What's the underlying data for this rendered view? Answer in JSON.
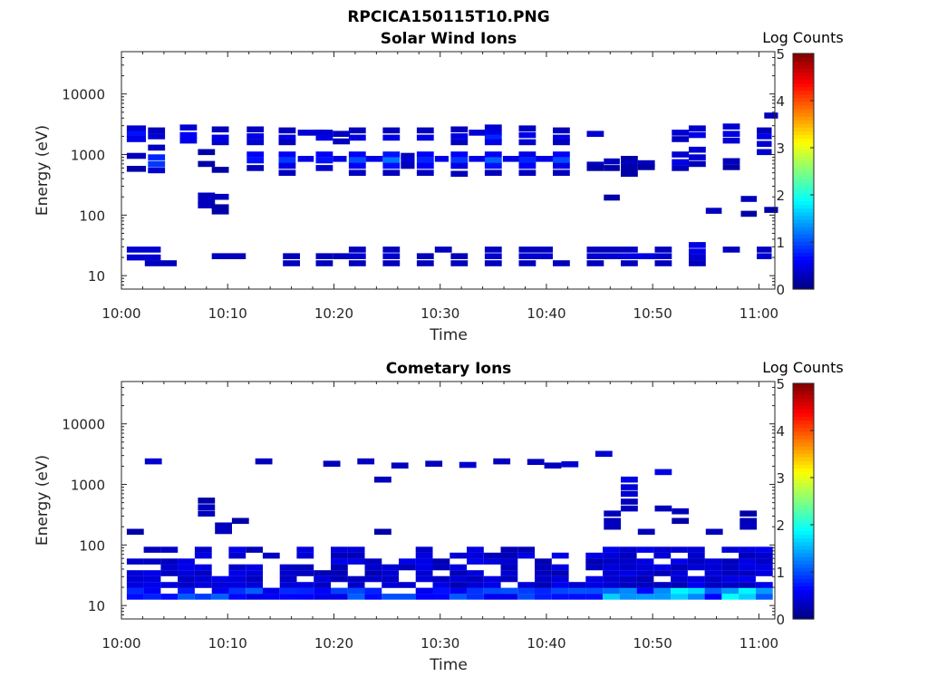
{
  "figure": {
    "suptitle": "RPCICA150115T10.PNG"
  },
  "colorbar": {
    "title": "Log Counts",
    "ticks": [
      "0",
      "1",
      "2",
      "3",
      "4",
      "5"
    ],
    "range": [
      0,
      5
    ],
    "colormap": "jet"
  },
  "chart_data": [
    {
      "type": "heatmap",
      "title": "Solar Wind Ions",
      "xlabel": "Time",
      "ylabel": "Energy (eV)",
      "x_ticks": [
        "10:00",
        "10:10",
        "10:20",
        "10:30",
        "10:40",
        "10:50",
        "11:00"
      ],
      "y_ticks": [
        "10",
        "100",
        "1000",
        "10000"
      ],
      "yscale": "log",
      "xlim_minutes": [
        0,
        61.5
      ],
      "ylim_ev": [
        6,
        50000
      ],
      "cells": [
        [
          0.5,
          2700,
          1.8,
          0.4
        ],
        [
          0.5,
          2200,
          1.8,
          0.7
        ],
        [
          0.5,
          1800,
          1.8,
          0.5
        ],
        [
          2.5,
          2500,
          1.6,
          0.3
        ],
        [
          2.5,
          2000,
          1.6,
          0.4
        ],
        [
          2.5,
          1300,
          1.6,
          0.3
        ],
        [
          2.5,
          900,
          1.6,
          0.8
        ],
        [
          2.5,
          700,
          1.6,
          0.9
        ],
        [
          2.5,
          550,
          1.6,
          0.4
        ],
        [
          0.5,
          950,
          1.8,
          0.3
        ],
        [
          0.5,
          580,
          1.8,
          0.2
        ],
        [
          5.5,
          2800,
          1.6,
          0.4
        ],
        [
          5.5,
          2100,
          1.6,
          0.6
        ],
        [
          5.5,
          1700,
          1.6,
          0.5
        ],
        [
          8.5,
          2600,
          1.6,
          0.3
        ],
        [
          8.5,
          1900,
          1.6,
          0.5
        ],
        [
          8.5,
          1600,
          1.6,
          0.4
        ],
        [
          8.5,
          560,
          1.6,
          0.2
        ],
        [
          7.2,
          1100,
          1.6,
          0.2
        ],
        [
          7.2,
          700,
          1.6,
          0.2
        ],
        [
          11.8,
          2600,
          1.6,
          0.3
        ],
        [
          11.8,
          2000,
          1.6,
          0.5
        ],
        [
          11.8,
          1600,
          1.6,
          0.4
        ],
        [
          11.8,
          1000,
          1.6,
          0.6
        ],
        [
          11.8,
          800,
          1.6,
          0.7
        ],
        [
          11.8,
          600,
          1.6,
          0.3
        ],
        [
          14.8,
          2500,
          1.6,
          0.3
        ],
        [
          14.8,
          1900,
          1.6,
          0.5
        ],
        [
          14.8,
          1600,
          1.6,
          0.3
        ],
        [
          14.8,
          1000,
          1.6,
          0.6
        ],
        [
          14.8,
          800,
          1.6,
          0.9
        ],
        [
          14.8,
          650,
          1.6,
          0.5
        ],
        [
          14.8,
          500,
          1.6,
          0.3
        ],
        [
          16.6,
          2300,
          2.6,
          0.4
        ],
        [
          16.6,
          850,
          1.5,
          0.5
        ],
        [
          18.3,
          2300,
          1.6,
          0.4
        ],
        [
          18.3,
          1900,
          1.6,
          0.5
        ],
        [
          18.3,
          1000,
          1.6,
          0.6
        ],
        [
          18.3,
          800,
          1.6,
          0.7
        ],
        [
          18.3,
          600,
          1.6,
          0.4
        ],
        [
          19.9,
          2200,
          1.6,
          0.3
        ],
        [
          19.9,
          1650,
          1.6,
          0.3
        ],
        [
          19.9,
          850,
          1.3,
          0.5
        ],
        [
          21.4,
          2500,
          1.6,
          0.3
        ],
        [
          21.4,
          1900,
          1.6,
          0.5
        ],
        [
          21.4,
          1000,
          1.6,
          0.6
        ],
        [
          21.4,
          800,
          1.6,
          1.0
        ],
        [
          21.4,
          650,
          1.6,
          0.6
        ],
        [
          21.4,
          500,
          1.6,
          0.3
        ],
        [
          23.0,
          850,
          1.6,
          0.5
        ],
        [
          24.6,
          2500,
          1.6,
          0.3
        ],
        [
          24.6,
          1900,
          1.6,
          0.5
        ],
        [
          24.6,
          1000,
          1.6,
          0.7
        ],
        [
          24.6,
          800,
          1.6,
          1.2
        ],
        [
          24.6,
          650,
          1.6,
          0.7
        ],
        [
          24.6,
          500,
          1.6,
          0.3
        ],
        [
          26.3,
          950,
          1.3,
          0.3
        ],
        [
          26.3,
          800,
          1.3,
          0.4
        ],
        [
          26.3,
          650,
          1.3,
          0.3
        ],
        [
          27.8,
          2500,
          1.6,
          0.3
        ],
        [
          27.8,
          1900,
          1.6,
          0.5
        ],
        [
          27.8,
          1000,
          1.6,
          0.6
        ],
        [
          27.8,
          800,
          1.6,
          0.8
        ],
        [
          27.8,
          650,
          1.6,
          0.6
        ],
        [
          27.8,
          500,
          1.6,
          0.3
        ],
        [
          29.5,
          850,
          1.3,
          0.5
        ],
        [
          31.0,
          2600,
          1.6,
          0.3
        ],
        [
          31.0,
          2000,
          1.6,
          0.5
        ],
        [
          31.0,
          1600,
          1.6,
          0.3
        ],
        [
          31.0,
          1000,
          1.6,
          0.6
        ],
        [
          31.0,
          800,
          1.6,
          0.9
        ],
        [
          31.0,
          650,
          1.6,
          0.5
        ],
        [
          31.0,
          480,
          1.6,
          0.3
        ],
        [
          32.7,
          2300,
          1.6,
          0.4
        ],
        [
          32.7,
          850,
          1.6,
          0.5
        ],
        [
          34.2,
          2800,
          1.6,
          0.4
        ],
        [
          34.2,
          2300,
          1.6,
          0.5
        ],
        [
          34.2,
          1900,
          1.6,
          0.8
        ],
        [
          34.2,
          1600,
          1.6,
          0.5
        ],
        [
          34.2,
          1000,
          1.6,
          0.6
        ],
        [
          34.2,
          800,
          1.6,
          1.1
        ],
        [
          34.2,
          650,
          1.6,
          0.7
        ],
        [
          34.2,
          500,
          1.6,
          0.3
        ],
        [
          35.9,
          850,
          1.6,
          0.5
        ],
        [
          37.4,
          2700,
          1.6,
          0.3
        ],
        [
          37.4,
          2100,
          1.6,
          0.5
        ],
        [
          37.4,
          1600,
          1.6,
          0.4
        ],
        [
          37.4,
          1000,
          1.6,
          0.5
        ],
        [
          37.4,
          800,
          1.6,
          0.8
        ],
        [
          37.4,
          650,
          1.6,
          0.6
        ],
        [
          37.4,
          500,
          1.6,
          0.3
        ],
        [
          39.0,
          850,
          1.6,
          0.5
        ],
        [
          40.6,
          2500,
          1.6,
          0.3
        ],
        [
          40.6,
          1900,
          1.6,
          0.5
        ],
        [
          40.6,
          1600,
          1.6,
          0.3
        ],
        [
          40.6,
          1000,
          1.6,
          0.6
        ],
        [
          40.6,
          800,
          1.6,
          1.0
        ],
        [
          40.6,
          650,
          1.6,
          0.5
        ],
        [
          40.6,
          500,
          1.6,
          0.3
        ],
        [
          43.8,
          2200,
          1.6,
          0.4
        ],
        [
          43.8,
          680,
          1.6,
          0.3
        ],
        [
          43.8,
          600,
          1.6,
          0.2
        ],
        [
          45.4,
          770,
          1.5,
          0.3
        ],
        [
          45.4,
          600,
          1.5,
          0.2
        ],
        [
          45.4,
          195,
          1.5,
          0.2
        ],
        [
          47.0,
          850,
          1.6,
          0.2
        ],
        [
          47.0,
          720,
          1.6,
          0.3
        ],
        [
          47.0,
          600,
          1.6,
          0.2
        ],
        [
          47.0,
          480,
          1.6,
          0.2
        ],
        [
          48.6,
          720,
          1.6,
          0.3
        ],
        [
          48.6,
          620,
          1.6,
          0.2
        ],
        [
          51.8,
          2300,
          1.6,
          0.4
        ],
        [
          51.8,
          1800,
          1.6,
          0.3
        ],
        [
          51.8,
          1000,
          1.6,
          0.4
        ],
        [
          51.8,
          750,
          1.6,
          0.5
        ],
        [
          51.8,
          600,
          1.6,
          0.3
        ],
        [
          53.4,
          2700,
          1.6,
          0.4
        ],
        [
          53.4,
          2100,
          1.6,
          0.5
        ],
        [
          53.4,
          1200,
          1.6,
          0.4
        ],
        [
          53.4,
          900,
          1.6,
          0.4
        ],
        [
          53.4,
          700,
          1.6,
          0.3
        ],
        [
          56.6,
          2900,
          1.6,
          0.4
        ],
        [
          56.6,
          2200,
          1.6,
          0.5
        ],
        [
          56.6,
          1700,
          1.6,
          0.4
        ],
        [
          56.6,
          780,
          1.6,
          0.3
        ],
        [
          56.6,
          620,
          1.6,
          0.2
        ],
        [
          59.8,
          2500,
          1.4,
          0.3
        ],
        [
          59.8,
          2000,
          1.4,
          0.5
        ],
        [
          59.8,
          1500,
          1.4,
          0.4
        ],
        [
          59.8,
          1100,
          1.4,
          0.4
        ],
        [
          60.5,
          4400,
          1.3,
          0.3
        ],
        [
          7.2,
          210,
          1.6,
          0.3
        ],
        [
          7.2,
          170,
          1.6,
          0.3
        ],
        [
          7.2,
          145,
          1.6,
          0.3
        ],
        [
          8.5,
          200,
          1.6,
          0.3
        ],
        [
          8.5,
          135,
          1.6,
          0.2
        ],
        [
          8.5,
          115,
          1.6,
          0.2
        ],
        [
          55.0,
          118,
          1.5,
          0.3
        ],
        [
          58.3,
          185,
          1.5,
          0.3
        ],
        [
          58.3,
          105,
          1.5,
          0.2
        ],
        [
          60.5,
          122,
          1.3,
          0.2
        ],
        [
          0.5,
          27,
          3.2,
          0.4
        ],
        [
          0.5,
          20,
          3.2,
          0.4
        ],
        [
          2.2,
          16,
          3.0,
          0.3
        ],
        [
          8.5,
          21,
          3.2,
          0.3
        ],
        [
          15.2,
          21,
          1.6,
          0.3
        ],
        [
          15.2,
          16,
          1.6,
          0.3
        ],
        [
          18.3,
          21,
          1.6,
          0.3
        ],
        [
          18.3,
          16,
          1.6,
          0.3
        ],
        [
          19.9,
          21,
          1.6,
          0.3
        ],
        [
          21.4,
          27,
          1.6,
          0.3
        ],
        [
          21.4,
          21,
          1.6,
          0.4
        ],
        [
          21.4,
          16,
          1.6,
          0.3
        ],
        [
          24.6,
          27,
          1.6,
          0.3
        ],
        [
          24.6,
          21,
          1.6,
          0.4
        ],
        [
          24.6,
          16,
          1.6,
          0.3
        ],
        [
          27.8,
          21,
          1.6,
          0.3
        ],
        [
          27.8,
          16,
          1.6,
          0.3
        ],
        [
          29.5,
          27,
          1.6,
          0.3
        ],
        [
          31.0,
          21,
          1.6,
          0.3
        ],
        [
          31.0,
          16,
          1.6,
          0.3
        ],
        [
          34.2,
          27,
          1.6,
          0.3
        ],
        [
          34.2,
          21,
          1.6,
          0.4
        ],
        [
          34.2,
          16,
          1.6,
          0.3
        ],
        [
          37.4,
          27,
          3.2,
          0.3
        ],
        [
          37.4,
          21,
          3.2,
          0.4
        ],
        [
          37.4,
          16,
          1.6,
          0.3
        ],
        [
          40.6,
          16,
          1.6,
          0.3
        ],
        [
          43.8,
          27,
          3.2,
          0.3
        ],
        [
          43.8,
          21,
          3.2,
          0.4
        ],
        [
          43.8,
          16,
          1.6,
          0.3
        ],
        [
          47.0,
          27,
          1.6,
          0.3
        ],
        [
          47.0,
          21,
          3.2,
          0.5
        ],
        [
          47.0,
          16,
          1.6,
          0.3
        ],
        [
          50.2,
          27,
          1.6,
          0.3
        ],
        [
          50.2,
          21,
          1.6,
          0.4
        ],
        [
          50.2,
          16,
          1.6,
          0.3
        ],
        [
          53.4,
          32,
          1.6,
          0.5
        ],
        [
          53.4,
          25,
          1.6,
          0.5
        ],
        [
          53.4,
          20,
          1.6,
          0.4
        ],
        [
          53.4,
          16,
          1.6,
          0.3
        ],
        [
          56.6,
          27,
          1.6,
          0.3
        ],
        [
          59.8,
          27,
          1.4,
          0.3
        ],
        [
          59.8,
          21,
          1.4,
          0.4
        ]
      ]
    },
    {
      "type": "heatmap",
      "title": "Cometary Ions",
      "xlabel": "Time",
      "ylabel": "Energy (eV)",
      "x_ticks": [
        "10:00",
        "10:10",
        "10:20",
        "10:30",
        "10:40",
        "10:50",
        "11:00"
      ],
      "y_ticks": [
        "10",
        "100",
        "1000",
        "10000"
      ],
      "yscale": "log",
      "xlim_minutes": [
        0,
        61.5
      ],
      "ylim_ev": [
        6,
        50000
      ],
      "cells": [
        [
          0.5,
          165,
          1.6,
          0.2
        ],
        [
          2.2,
          2400,
          1.6,
          0.4
        ],
        [
          12.6,
          2400,
          1.6,
          0.3
        ],
        [
          19.0,
          2200,
          1.6,
          0.3
        ],
        [
          22.2,
          2400,
          1.6,
          0.3
        ],
        [
          23.8,
          1200,
          1.6,
          0.3
        ],
        [
          25.4,
          2050,
          1.6,
          0.3
        ],
        [
          28.6,
          2200,
          1.6,
          0.3
        ],
        [
          31.8,
          2100,
          1.6,
          0.4
        ],
        [
          35.0,
          2400,
          1.6,
          0.3
        ],
        [
          38.2,
          2350,
          1.6,
          0.3
        ],
        [
          39.8,
          2050,
          1.6,
          0.3
        ],
        [
          41.4,
          2150,
          1.6,
          0.4
        ],
        [
          44.6,
          3200,
          1.6,
          0.4
        ],
        [
          47.0,
          1200,
          1.6,
          0.5
        ],
        [
          47.0,
          900,
          1.6,
          0.4
        ],
        [
          47.0,
          700,
          1.6,
          0.4
        ],
        [
          47.0,
          520,
          1.6,
          0.3
        ],
        [
          47.0,
          400,
          1.6,
          0.3
        ],
        [
          50.2,
          1600,
          1.6,
          0.5
        ],
        [
          50.2,
          400,
          1.6,
          0.3
        ],
        [
          51.8,
          360,
          1.6,
          0.3
        ],
        [
          7.2,
          540,
          1.6,
          0.2
        ],
        [
          7.2,
          420,
          1.6,
          0.3
        ],
        [
          7.2,
          330,
          1.6,
          0.3
        ],
        [
          8.8,
          210,
          1.6,
          0.3
        ],
        [
          8.8,
          170,
          1.6,
          0.3
        ],
        [
          10.4,
          250,
          1.6,
          0.2
        ],
        [
          23.8,
          165,
          1.6,
          0.2
        ],
        [
          45.4,
          330,
          1.6,
          0.3
        ],
        [
          45.4,
          250,
          1.6,
          0.3
        ],
        [
          45.4,
          200,
          1.6,
          0.3
        ],
        [
          48.6,
          165,
          1.6,
          0.3
        ],
        [
          51.8,
          250,
          1.6,
          0.2
        ],
        [
          55.0,
          165,
          1.6,
          0.3
        ],
        [
          58.2,
          330,
          1.6,
          0.2
        ],
        [
          58.2,
          250,
          1.6,
          0.3
        ],
        [
          58.2,
          200,
          1.6,
          0.3
        ]
      ],
      "dense_band": {
        "energy_ev_range": [
          14,
          100
        ],
        "peak_energy_ev": 16,
        "peak_log_counts": 1.9
      }
    }
  ]
}
